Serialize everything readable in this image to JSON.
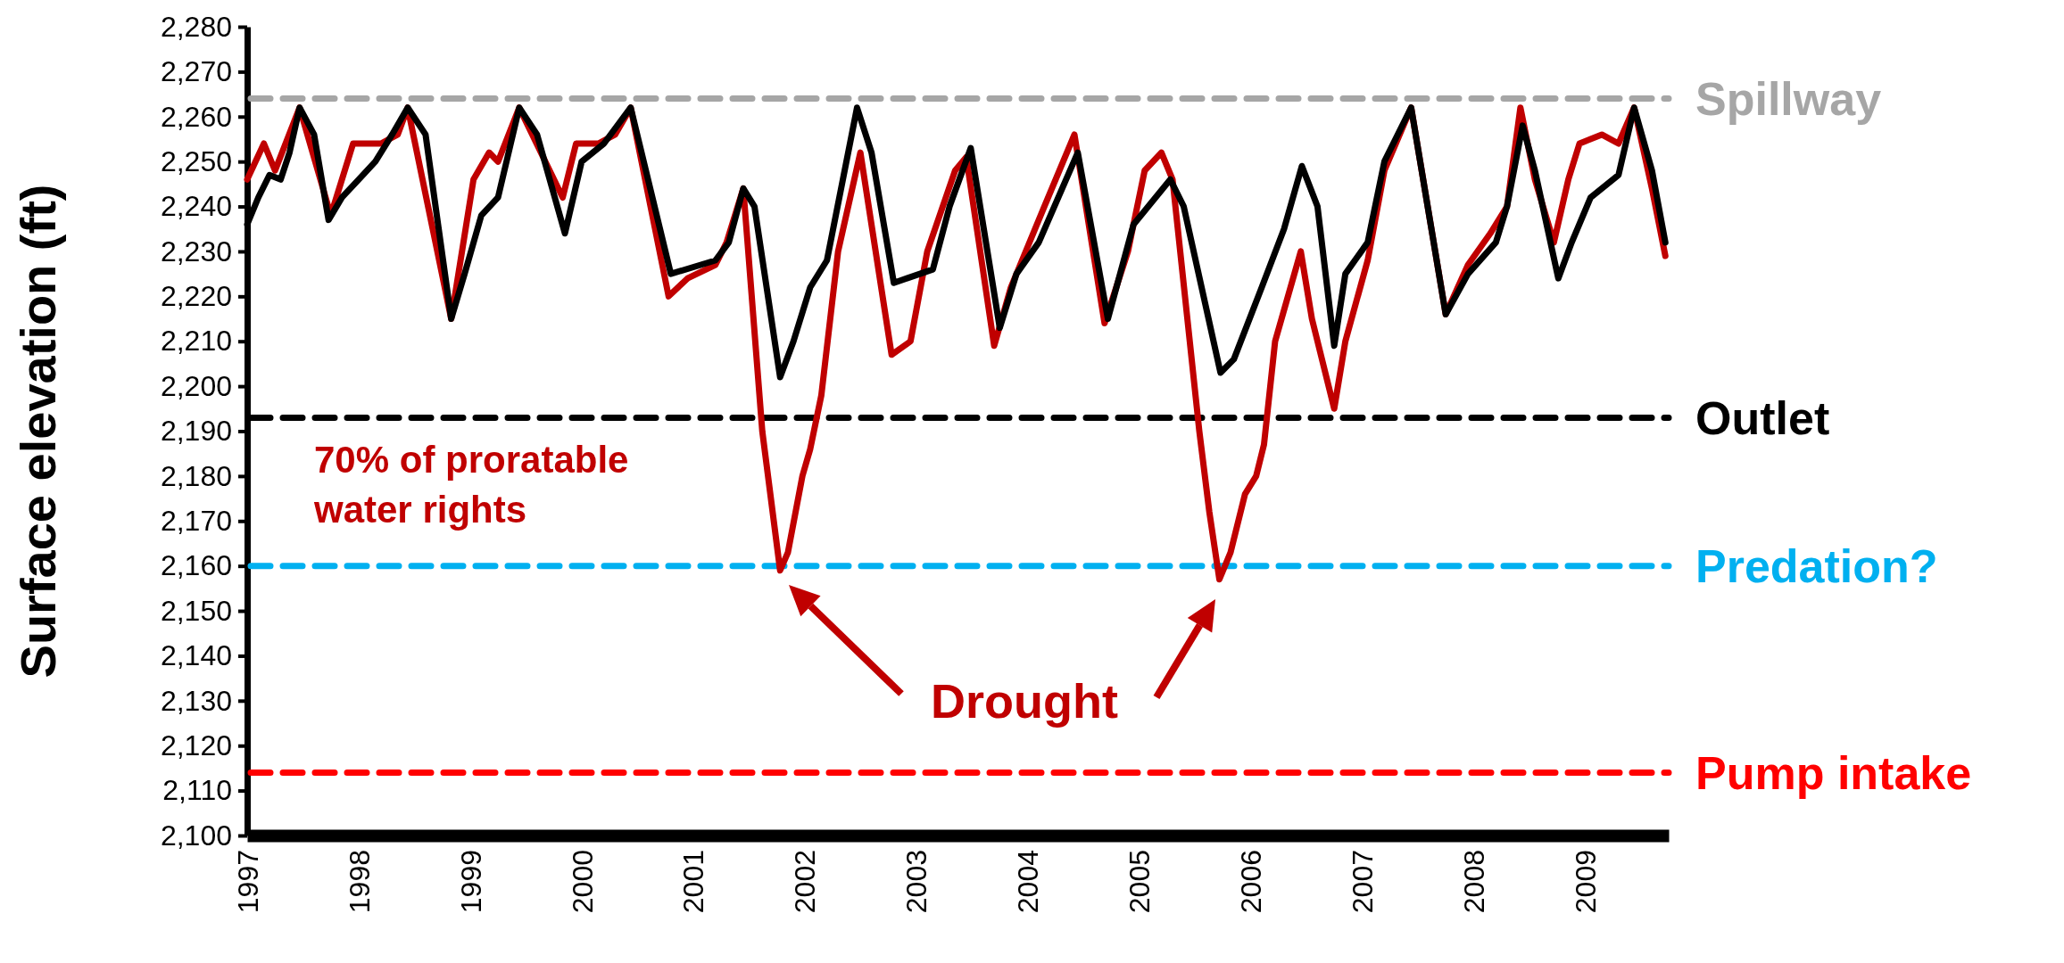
{
  "chart_data": {
    "type": "line",
    "ylabel": "Surface elevation (ft)",
    "xlim": [
      1997,
      2009.75
    ],
    "xticks": [
      1997,
      1998,
      1999,
      2000,
      2001,
      2002,
      2003,
      2004,
      2005,
      2006,
      2007,
      2008,
      2009
    ],
    "ylim": [
      2100,
      2280
    ],
    "yticks": [
      {
        "value": 2100,
        "label": "2,100"
      },
      {
        "value": 2110,
        "label": "2,110"
      },
      {
        "value": 2120,
        "label": "2,120"
      },
      {
        "value": 2130,
        "label": "2,130"
      },
      {
        "value": 2140,
        "label": "2,140"
      },
      {
        "value": 2150,
        "label": "2,150"
      },
      {
        "value": 2160,
        "label": "2,160"
      },
      {
        "value": 2170,
        "label": "2,170"
      },
      {
        "value": 2180,
        "label": "2,180"
      },
      {
        "value": 2190,
        "label": "2,190"
      },
      {
        "value": 2200,
        "label": "2,200"
      },
      {
        "value": 2210,
        "label": "2,210"
      },
      {
        "value": 2220,
        "label": "2,220"
      },
      {
        "value": 2230,
        "label": "2,230"
      },
      {
        "value": 2240,
        "label": "2,240"
      },
      {
        "value": 2250,
        "label": "2,250"
      },
      {
        "value": 2260,
        "label": "2,260"
      },
      {
        "value": 2270,
        "label": "2,270"
      },
      {
        "value": 2280,
        "label": "2,280"
      }
    ],
    "grid": false,
    "marker": "none",
    "line_style": "solid",
    "series": [
      {
        "color": "#c00000",
        "x": [
          1997,
          1997.15,
          1997.25,
          1997.47,
          1997.75,
          1997.95,
          1998.2,
          1998.35,
          1998.44,
          1998.83,
          1999.03,
          1999.17,
          1999.25,
          1999.44,
          1999.83,
          1999.95,
          2000.15,
          2000.3,
          2000.44,
          2000.78,
          2000.95,
          2001.2,
          2001.3,
          2001.45,
          2001.62,
          2001.78,
          2001.85,
          2001.98,
          2002.05,
          2002.15,
          2002.3,
          2002.5,
          2002.78,
          2002.95,
          2003.1,
          2003.35,
          2003.45,
          2003.7,
          2003.85,
          2004.15,
          2004.42,
          2004.69,
          2004.9,
          2005.05,
          2005.2,
          2005.3,
          2005.54,
          2005.63,
          2005.72,
          2005.82,
          2005.95,
          2006.05,
          2006.12,
          2006.22,
          2006.45,
          2006.55,
          2006.75,
          2006.85,
          2007.05,
          2007.2,
          2007.44,
          2007.75,
          2007.95,
          2008.15,
          2008.3,
          2008.42,
          2008.55,
          2008.72,
          2008.85,
          2008.95,
          2009.15,
          2009.3,
          2009.44,
          2009.6,
          2009.72
        ],
        "values": [
          2246,
          2254,
          2248,
          2262,
          2238,
          2254,
          2254,
          2256,
          2262,
          2215,
          2246,
          2252,
          2250,
          2262,
          2242,
          2254,
          2254,
          2256,
          2262,
          2220,
          2224,
          2227,
          2232,
          2244,
          2190,
          2159,
          2163,
          2180,
          2186,
          2198,
          2230,
          2252,
          2207,
          2210,
          2230,
          2248,
          2251,
          2209,
          2222,
          2240,
          2256,
          2214,
          2230,
          2248,
          2252,
          2246,
          2190,
          2172,
          2157,
          2163,
          2176,
          2180,
          2187,
          2210,
          2230,
          2215,
          2195,
          2210,
          2228,
          2248,
          2262,
          2216,
          2227,
          2234,
          2240,
          2262,
          2246,
          2232,
          2246,
          2254,
          2256,
          2254,
          2262,
          2244,
          2229
        ]
      },
      {
        "color": "#000000",
        "x": [
          1997,
          1997.1,
          1997.2,
          1997.3,
          1997.38,
          1997.47,
          1997.6,
          1997.73,
          1997.85,
          1998,
          1998.15,
          1998.3,
          1998.44,
          1998.6,
          1998.83,
          1998.95,
          1999.1,
          1999.25,
          1999.44,
          1999.6,
          1999.85,
          2000,
          2000.2,
          2000.44,
          2000.8,
          2001.2,
          2001.32,
          2001.45,
          2001.55,
          2001.78,
          2001.9,
          2002.05,
          2002.2,
          2002.47,
          2002.6,
          2002.8,
          2003.15,
          2003.3,
          2003.49,
          2003.75,
          2003.9,
          2004.1,
          2004.45,
          2004.72,
          2004.95,
          2005.28,
          2005.4,
          2005.73,
          2005.85,
          2006.1,
          2006.3,
          2006.46,
          2006.6,
          2006.75,
          2006.85,
          2007.05,
          2007.2,
          2007.44,
          2007.75,
          2007.95,
          2008.2,
          2008.3,
          2008.44,
          2008.55,
          2008.76,
          2008.88,
          2009.05,
          2009.3,
          2009.44,
          2009.6,
          2009.72
        ],
        "values": [
          2236,
          2242,
          2247,
          2246,
          2252,
          2262,
          2256,
          2237,
          2242,
          2246,
          2250,
          2256,
          2262,
          2256,
          2215,
          2225,
          2238,
          2242,
          2262,
          2256,
          2234,
          2250,
          2254,
          2262,
          2225,
          2228,
          2232,
          2244,
          2240,
          2202,
          2210,
          2222,
          2228,
          2262,
          2252,
          2223,
          2226,
          2240,
          2253,
          2213,
          2225,
          2232,
          2252,
          2215,
          2236,
          2246,
          2240,
          2203,
          2206,
          2222,
          2235,
          2249,
          2240,
          2209,
          2225,
          2232,
          2250,
          2262,
          2216,
          2225,
          2232,
          2240,
          2258,
          2248,
          2224,
          2232,
          2242,
          2247,
          2262,
          2248,
          2232
        ]
      }
    ],
    "ref_lines": [
      {
        "axis": "y",
        "value": 2264,
        "label": "Spillway",
        "color": "#a6a6a6",
        "line_style": "dashed"
      },
      {
        "axis": "y",
        "value": 2193,
        "label": "Outlet",
        "color": "#000000",
        "line_style": "dashed"
      },
      {
        "axis": "y",
        "value": 2160,
        "label": "Predation?",
        "color": "#00b0f0",
        "line_style": "dashed"
      },
      {
        "axis": "y",
        "value": 2114,
        "label": "Pump intake",
        "color": "#ff0000",
        "line_style": "dashed"
      }
    ],
    "annotations": [
      "70% of proratable water rights",
      "Drought"
    ]
  }
}
